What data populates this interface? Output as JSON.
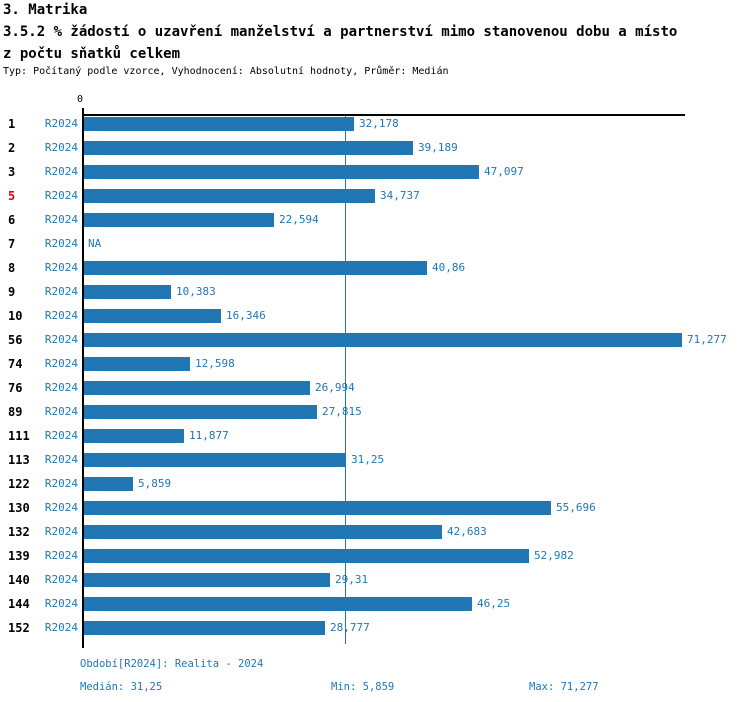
{
  "header": {
    "title": "3. Matrika",
    "heading_lines": [
      "3.5.2 % žádostí o uzavření manželství a partnerství mimo stanovenou dobu a místo",
      "z počtu sňatků celkem"
    ],
    "subtitle": "Typ: Počítaný podle vzorce, Vyhodnocení: Absolutní hodnoty, Průměr: Medián"
  },
  "chart_data": {
    "type": "bar",
    "orientation": "horizontal",
    "title": "3.5.2 % žádostí o uzavření manželství a partnerství mimo stanovenou dobu a místo z počtu sňatků celkem",
    "series_label": "R2024",
    "value_unit": "%",
    "axis": {
      "zero_label": "0",
      "axis_max": 71.277,
      "median": 31.25,
      "min": 5.859,
      "max": 71.277,
      "grid": "median-line-only",
      "legend_position": "none"
    },
    "rows": [
      {
        "id": "1",
        "value": 32.178,
        "label": "32,178",
        "highlight": false
      },
      {
        "id": "2",
        "value": 39.189,
        "label": "39,189",
        "highlight": false
      },
      {
        "id": "3",
        "value": 47.097,
        "label": "47,097",
        "highlight": false
      },
      {
        "id": "5",
        "value": 34.737,
        "label": "34,737",
        "highlight": true
      },
      {
        "id": "6",
        "value": 22.594,
        "label": "22,594",
        "highlight": false
      },
      {
        "id": "7",
        "value": null,
        "label": "NA",
        "highlight": false
      },
      {
        "id": "8",
        "value": 40.86,
        "label": "40,86",
        "highlight": false
      },
      {
        "id": "9",
        "value": 10.383,
        "label": "10,383",
        "highlight": false
      },
      {
        "id": "10",
        "value": 16.346,
        "label": "16,346",
        "highlight": false
      },
      {
        "id": "56",
        "value": 71.277,
        "label": "71,277",
        "highlight": false
      },
      {
        "id": "74",
        "value": 12.598,
        "label": "12,598",
        "highlight": false
      },
      {
        "id": "76",
        "value": 26.994,
        "label": "26,994",
        "highlight": false
      },
      {
        "id": "89",
        "value": 27.815,
        "label": "27,815",
        "highlight": false
      },
      {
        "id": "111",
        "value": 11.877,
        "label": "11,877",
        "highlight": false
      },
      {
        "id": "113",
        "value": 31.25,
        "label": "31,25",
        "highlight": false
      },
      {
        "id": "122",
        "value": 5.859,
        "label": "5,859",
        "highlight": false
      },
      {
        "id": "130",
        "value": 55.696,
        "label": "55,696",
        "highlight": false
      },
      {
        "id": "132",
        "value": 42.683,
        "label": "42,683",
        "highlight": false
      },
      {
        "id": "139",
        "value": 52.982,
        "label": "52,982",
        "highlight": false
      },
      {
        "id": "140",
        "value": 29.31,
        "label": "29,31",
        "highlight": false
      },
      {
        "id": "144",
        "value": 46.25,
        "label": "46,25",
        "highlight": false
      },
      {
        "id": "152",
        "value": 28.777,
        "label": "28,777",
        "highlight": false
      }
    ],
    "colors": {
      "bar": "#2077b4",
      "text_blue": "#1f77b4",
      "highlight_red": "#e60000",
      "axis_black": "#000000"
    }
  },
  "footer": {
    "period": "Období[R2024]: Realita - 2024",
    "median": "Medián: 31,25",
    "min": "Min: 5,859",
    "max": "Max: 71,277"
  }
}
